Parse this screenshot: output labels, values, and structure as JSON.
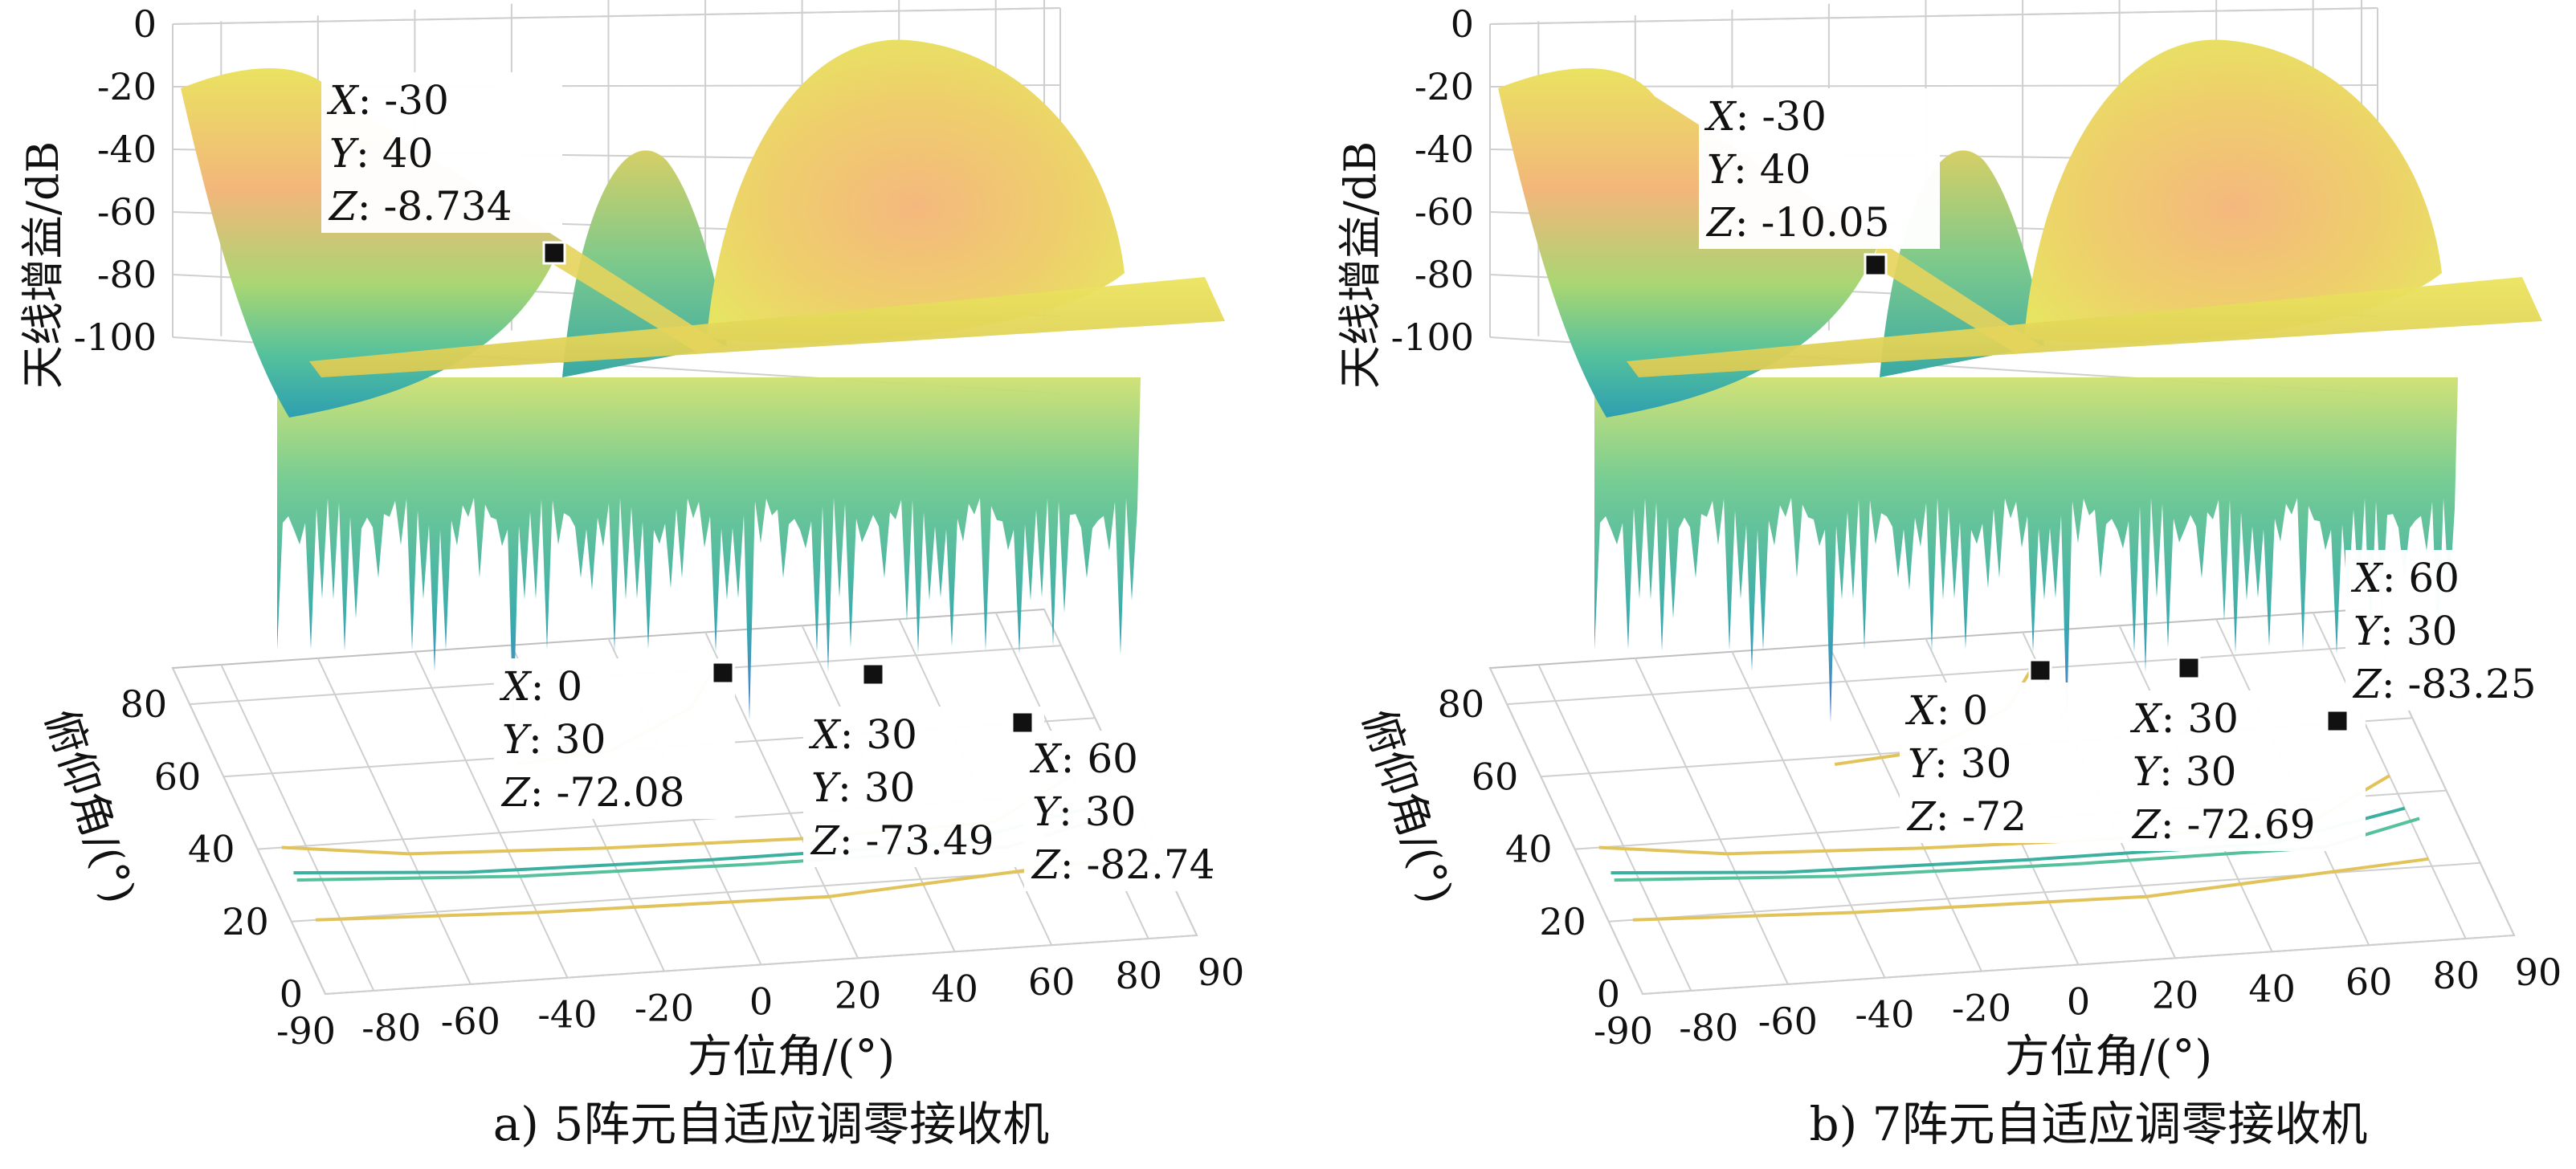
{
  "chart_data": [
    {
      "type": "surface3d",
      "caption": "a) 5阵元自适应调零接收机",
      "xlabel": "方位角/(°)",
      "ylabel": "俯仰角/(°)",
      "zlabel": "天线增益/dB",
      "xlim": [
        -90,
        90
      ],
      "ylim": [
        0,
        90
      ],
      "zlim": [
        -100,
        0
      ],
      "x_ticks": [
        "-90",
        "-80",
        "-60",
        "-40",
        "-20",
        "0",
        "20",
        "40",
        "60",
        "80",
        "90"
      ],
      "y_ticks": [
        "0",
        "20",
        "40",
        "60",
        "80"
      ],
      "z_ticks": [
        "0",
        "-20",
        "-40",
        "-60",
        "-80",
        "-100"
      ],
      "grid": true,
      "colormap": [
        "#3d6fd6",
        "#2fa7a6",
        "#5cc49a",
        "#a6d46e",
        "#f2b878",
        "#eadd62"
      ],
      "datatips": [
        {
          "x": -30,
          "y": 40,
          "z": -8.734,
          "x_text": "-30",
          "y_text": "40",
          "z_text": "-8.734"
        },
        {
          "x": 0,
          "y": 30,
          "z": -72.08,
          "x_text": "0",
          "y_text": "30",
          "z_text": "-72.08"
        },
        {
          "x": 30,
          "y": 30,
          "z": -73.49,
          "x_text": "30",
          "y_text": "30",
          "z_text": "-73.49"
        },
        {
          "x": 60,
          "y": 30,
          "z": -82.74,
          "x_text": "60",
          "y_text": "30",
          "z_text": "-82.74"
        }
      ]
    },
    {
      "type": "surface3d",
      "caption": "b) 7阵元自适应调零接收机",
      "xlabel": "方位角/(°)",
      "ylabel": "俯仰角/(°)",
      "zlabel": "天线增益/dB",
      "xlim": [
        -90,
        90
      ],
      "ylim": [
        0,
        90
      ],
      "zlim": [
        -100,
        0
      ],
      "x_ticks": [
        "-90",
        "-80",
        "-60",
        "-40",
        "-20",
        "0",
        "20",
        "40",
        "60",
        "80",
        "90"
      ],
      "y_ticks": [
        "0",
        "20",
        "40",
        "60",
        "80"
      ],
      "z_ticks": [
        "0",
        "-20",
        "-40",
        "-60",
        "-80",
        "-100"
      ],
      "grid": true,
      "colormap": [
        "#3d6fd6",
        "#2fa7a6",
        "#5cc49a",
        "#a6d46e",
        "#f2b878",
        "#eadd62"
      ],
      "datatips": [
        {
          "x": -30,
          "y": 40,
          "z": -10.05,
          "x_text": "-30",
          "y_text": "40",
          "z_text": "-10.05"
        },
        {
          "x": 0,
          "y": 30,
          "z": -72,
          "x_text": "0",
          "y_text": "30",
          "z_text": "-72"
        },
        {
          "x": 30,
          "y": 30,
          "z": -72.69,
          "x_text": "30",
          "y_text": "30",
          "z_text": "-72.69"
        },
        {
          "x": 60,
          "y": 30,
          "z": -83.25,
          "x_text": "60",
          "y_text": "30",
          "z_text": "-83.25"
        }
      ]
    }
  ]
}
